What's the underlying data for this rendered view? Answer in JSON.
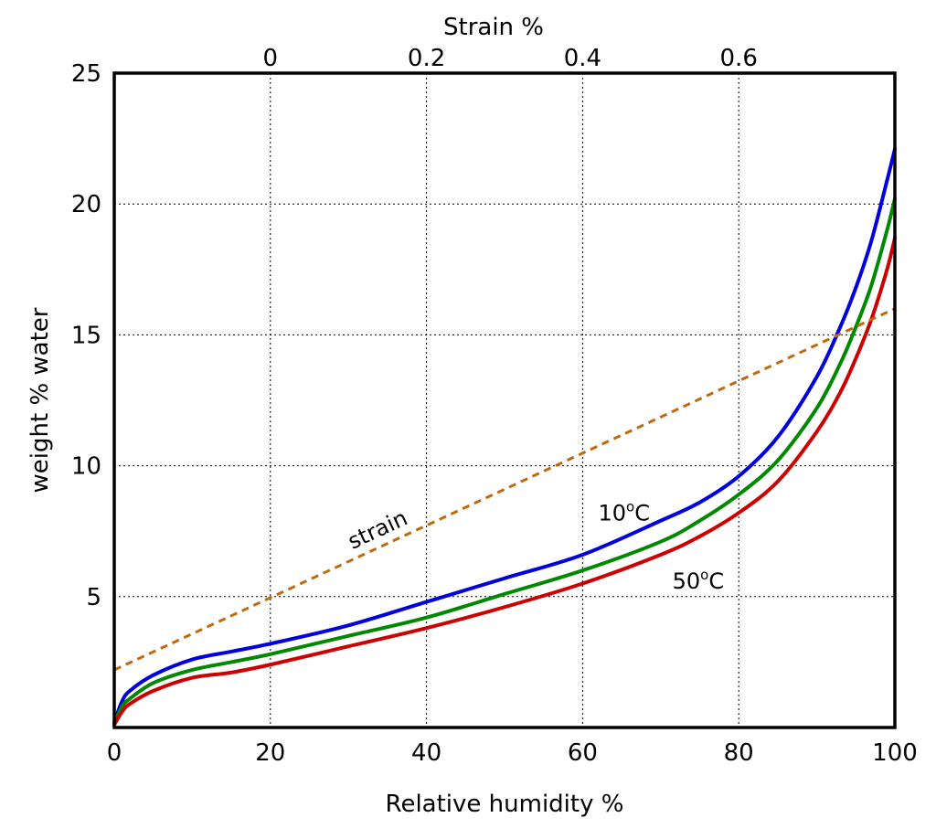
{
  "chart_data": {
    "type": "line",
    "xlabel": "Relative humidity %",
    "ylabel": "weight % water",
    "x2label": "Strain %",
    "xlim": [
      0,
      100
    ],
    "ylim": [
      0,
      25
    ],
    "x_ticks": [
      0,
      20,
      40,
      60,
      80,
      100
    ],
    "y_ticks": [
      5,
      10,
      15,
      20,
      25
    ],
    "x2_ticks": [
      {
        "label": "0",
        "rh": 20
      },
      {
        "label": "0.2",
        "rh": 40
      },
      {
        "label": "0.4",
        "rh": 60
      },
      {
        "label": "0.6",
        "rh": 80
      }
    ],
    "grid": true,
    "series": [
      {
        "key": "t10",
        "color": "#0000dd",
        "style": "solid",
        "x": [
          0,
          1,
          2,
          5,
          10,
          15,
          20,
          30,
          40,
          50,
          60,
          70,
          75,
          80,
          85,
          90,
          93,
          95,
          97,
          99,
          100
        ],
        "y": [
          0.2,
          1.0,
          1.4,
          2.0,
          2.6,
          2.9,
          3.2,
          3.9,
          4.8,
          5.7,
          6.6,
          7.9,
          8.6,
          9.6,
          11.1,
          13.4,
          15.3,
          16.8,
          18.6,
          20.9,
          22.1
        ]
      },
      {
        "key": "t30",
        "color": "#008800",
        "style": "solid",
        "x": [
          0,
          1,
          2,
          5,
          10,
          15,
          20,
          30,
          40,
          50,
          60,
          70,
          75,
          80,
          85,
          90,
          93,
          95,
          97,
          99,
          100
        ],
        "y": [
          0.15,
          0.8,
          1.1,
          1.7,
          2.2,
          2.5,
          2.8,
          3.5,
          4.2,
          5.1,
          6.0,
          7.1,
          7.9,
          8.9,
          10.2,
          12.2,
          13.9,
          15.3,
          16.9,
          19.0,
          20.2
        ]
      },
      {
        "key": "t50",
        "color": "#cc0000",
        "style": "solid",
        "x": [
          0,
          1,
          2,
          5,
          10,
          15,
          20,
          30,
          40,
          50,
          60,
          70,
          75,
          80,
          85,
          90,
          93,
          95,
          97,
          99,
          100
        ],
        "y": [
          0.1,
          0.6,
          0.9,
          1.4,
          1.9,
          2.1,
          2.4,
          3.1,
          3.8,
          4.6,
          5.5,
          6.6,
          7.3,
          8.2,
          9.4,
          11.3,
          12.8,
          14.1,
          15.6,
          17.5,
          18.7
        ]
      },
      {
        "key": "strain",
        "color": "#c06a10",
        "style": "dashed",
        "x": [
          0,
          100
        ],
        "y": [
          2.2,
          16.0
        ]
      }
    ],
    "annotations": [
      {
        "key": "t10",
        "text": "10",
        "sup": "o",
        "suffix": "C",
        "x": 62,
        "y": 7.9
      },
      {
        "key": "t50",
        "text": "50",
        "sup": "o",
        "suffix": "C",
        "x": 71.5,
        "y": 5.3
      },
      {
        "key": "strain",
        "text": "strain",
        "x": 30.5,
        "y": 6.8
      }
    ]
  }
}
